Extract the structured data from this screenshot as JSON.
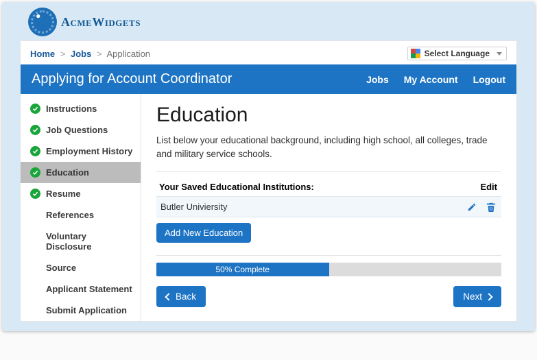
{
  "brand": {
    "name": "AcmeWidgets"
  },
  "breadcrumb": {
    "home": "Home",
    "jobs": "Jobs",
    "current": "Application"
  },
  "language_selector": {
    "label": "Select Language"
  },
  "titlebar": {
    "title": "Applying for Account Coordinator",
    "nav": {
      "jobs": "Jobs",
      "my_account": "My Account",
      "logout": "Logout"
    }
  },
  "sidebar": {
    "items": [
      {
        "label": "Instructions",
        "done": true,
        "active": false
      },
      {
        "label": "Job Questions",
        "done": true,
        "active": false
      },
      {
        "label": "Employment History",
        "done": true,
        "active": false
      },
      {
        "label": "Education",
        "done": true,
        "active": true
      },
      {
        "label": "Resume",
        "done": true,
        "active": false
      },
      {
        "label": "References",
        "done": false,
        "active": false
      },
      {
        "label": "Voluntary Disclosure",
        "done": false,
        "active": false
      },
      {
        "label": "Source",
        "done": false,
        "active": false
      },
      {
        "label": "Applicant Statement",
        "done": false,
        "active": false
      },
      {
        "label": "Submit Application",
        "done": false,
        "active": false
      }
    ]
  },
  "main": {
    "heading": "Education",
    "lead": "List below your educational background, including high school, all colleges, trade and military service schools.",
    "table": {
      "header_left": "Your Saved Educational Institutions:",
      "header_right": "Edit",
      "rows": [
        {
          "name": "Butler Univiersity"
        }
      ]
    },
    "add_button": "Add New Education",
    "progress": {
      "percent": 50,
      "label": "50% Complete"
    },
    "back_button": "Back",
    "next_button": "Next"
  },
  "colors": {
    "page_bg": "#d9e8f5",
    "primary": "#1d74c4",
    "success": "#19a53a",
    "row_bg": "#f1f7fb",
    "progress_track": "#dcdcdc",
    "sidebar_active": "#bcbcbc"
  }
}
